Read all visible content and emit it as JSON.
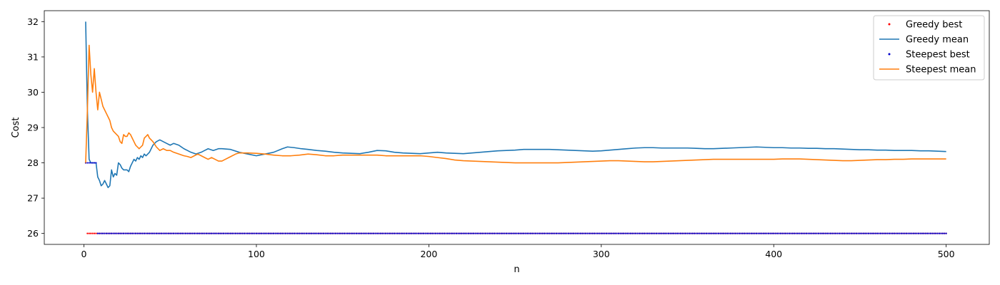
{
  "chart_data": {
    "type": "line",
    "title": "",
    "xlabel": "n",
    "ylabel": "Cost",
    "xlim": [
      -23,
      525
    ],
    "ylim": [
      25.69,
      32.31
    ],
    "xticks": [
      0,
      100,
      200,
      300,
      400,
      500
    ],
    "yticks": [
      26,
      27,
      28,
      29,
      30,
      31,
      32
    ],
    "grid": false,
    "legend_position": "top-right",
    "series": [
      {
        "name": "Greedy best",
        "style": "points",
        "color": "#ff0000",
        "x_range": [
          1,
          500
        ],
        "points": [
          [
            1,
            28
          ],
          [
            2,
            26
          ],
          [
            3,
            26
          ],
          [
            4,
            26
          ],
          [
            5,
            26
          ],
          [
            6,
            26
          ],
          [
            7,
            26
          ],
          [
            8,
            26
          ]
        ],
        "constant_tail": {
          "from": 8,
          "to": 500,
          "step": 1,
          "y": 26
        }
      },
      {
        "name": "Greedy mean",
        "style": "line",
        "color": "#1f77b4",
        "points": [
          [
            1,
            32
          ],
          [
            2,
            29.5
          ],
          [
            3,
            28.1
          ],
          [
            4,
            28.0
          ],
          [
            5,
            28.0
          ],
          [
            6,
            28.0
          ],
          [
            7,
            28.0
          ],
          [
            8,
            27.6
          ],
          [
            9,
            27.5
          ],
          [
            10,
            27.35
          ],
          [
            11,
            27.4
          ],
          [
            12,
            27.5
          ],
          [
            13,
            27.4
          ],
          [
            14,
            27.3
          ],
          [
            15,
            27.35
          ],
          [
            16,
            27.8
          ],
          [
            17,
            27.6
          ],
          [
            18,
            27.7
          ],
          [
            19,
            27.65
          ],
          [
            20,
            28.0
          ],
          [
            21,
            27.95
          ],
          [
            22,
            27.85
          ],
          [
            23,
            27.8
          ],
          [
            25,
            27.8
          ],
          [
            26,
            27.75
          ],
          [
            27,
            27.9
          ],
          [
            28,
            28.0
          ],
          [
            29,
            28.1
          ],
          [
            30,
            28.05
          ],
          [
            31,
            28.15
          ],
          [
            32,
            28.1
          ],
          [
            33,
            28.2
          ],
          [
            34,
            28.15
          ],
          [
            35,
            28.25
          ],
          [
            36,
            28.2
          ],
          [
            38,
            28.3
          ],
          [
            40,
            28.5
          ],
          [
            42,
            28.6
          ],
          [
            44,
            28.65
          ],
          [
            46,
            28.6
          ],
          [
            48,
            28.55
          ],
          [
            50,
            28.5
          ],
          [
            52,
            28.55
          ],
          [
            55,
            28.5
          ],
          [
            58,
            28.4
          ],
          [
            60,
            28.35
          ],
          [
            62,
            28.3
          ],
          [
            65,
            28.25
          ],
          [
            68,
            28.3
          ],
          [
            70,
            28.35
          ],
          [
            72,
            28.4
          ],
          [
            75,
            28.35
          ],
          [
            78,
            28.4
          ],
          [
            80,
            28.4
          ],
          [
            85,
            28.38
          ],
          [
            90,
            28.3
          ],
          [
            95,
            28.25
          ],
          [
            100,
            28.2
          ],
          [
            105,
            28.25
          ],
          [
            110,
            28.3
          ],
          [
            115,
            28.4
          ],
          [
            118,
            28.45
          ],
          [
            122,
            28.43
          ],
          [
            126,
            28.4
          ],
          [
            130,
            28.38
          ],
          [
            135,
            28.35
          ],
          [
            140,
            28.33
          ],
          [
            145,
            28.3
          ],
          [
            150,
            28.28
          ],
          [
            155,
            28.27
          ],
          [
            160,
            28.26
          ],
          [
            165,
            28.3
          ],
          [
            170,
            28.35
          ],
          [
            175,
            28.34
          ],
          [
            180,
            28.3
          ],
          [
            185,
            28.28
          ],
          [
            190,
            28.27
          ],
          [
            195,
            28.26
          ],
          [
            200,
            28.28
          ],
          [
            205,
            28.3
          ],
          [
            210,
            28.28
          ],
          [
            215,
            28.27
          ],
          [
            220,
            28.26
          ],
          [
            225,
            28.28
          ],
          [
            230,
            28.3
          ],
          [
            235,
            28.32
          ],
          [
            240,
            28.34
          ],
          [
            245,
            28.35
          ],
          [
            250,
            28.36
          ],
          [
            255,
            28.38
          ],
          [
            260,
            28.38
          ],
          [
            265,
            28.38
          ],
          [
            270,
            28.38
          ],
          [
            275,
            28.37
          ],
          [
            280,
            28.36
          ],
          [
            285,
            28.35
          ],
          [
            290,
            28.34
          ],
          [
            295,
            28.33
          ],
          [
            300,
            28.34
          ],
          [
            305,
            28.36
          ],
          [
            310,
            28.38
          ],
          [
            315,
            28.4
          ],
          [
            320,
            28.42
          ],
          [
            325,
            28.43
          ],
          [
            330,
            28.43
          ],
          [
            335,
            28.42
          ],
          [
            340,
            28.42
          ],
          [
            345,
            28.42
          ],
          [
            350,
            28.42
          ],
          [
            355,
            28.41
          ],
          [
            360,
            28.4
          ],
          [
            365,
            28.4
          ],
          [
            370,
            28.41
          ],
          [
            375,
            28.42
          ],
          [
            380,
            28.43
          ],
          [
            385,
            28.44
          ],
          [
            390,
            28.45
          ],
          [
            395,
            28.44
          ],
          [
            400,
            28.43
          ],
          [
            405,
            28.43
          ],
          [
            410,
            28.42
          ],
          [
            415,
            28.42
          ],
          [
            420,
            28.41
          ],
          [
            425,
            28.41
          ],
          [
            430,
            28.4
          ],
          [
            435,
            28.4
          ],
          [
            440,
            28.39
          ],
          [
            445,
            28.38
          ],
          [
            450,
            28.37
          ],
          [
            455,
            28.37
          ],
          [
            460,
            28.36
          ],
          [
            465,
            28.36
          ],
          [
            470,
            28.35
          ],
          [
            475,
            28.35
          ],
          [
            480,
            28.35
          ],
          [
            485,
            28.34
          ],
          [
            490,
            28.34
          ],
          [
            495,
            28.33
          ],
          [
            500,
            28.32
          ]
        ]
      },
      {
        "name": "Steepest best",
        "style": "points",
        "color": "#0000cc",
        "x_range": [
          1,
          500
        ],
        "points": [
          [
            1,
            28
          ],
          [
            2,
            28
          ],
          [
            3,
            28
          ],
          [
            4,
            28
          ],
          [
            5,
            28
          ],
          [
            6,
            28
          ],
          [
            7,
            28
          ],
          [
            8,
            26
          ]
        ],
        "constant_tail": {
          "from": 8,
          "to": 500,
          "step": 1,
          "y": 26
        }
      },
      {
        "name": "Steepest mean",
        "style": "line",
        "color": "#ff7f0e",
        "points": [
          [
            1,
            28
          ],
          [
            2,
            29.5
          ],
          [
            3,
            31.33
          ],
          [
            4,
            30.5
          ],
          [
            5,
            30.0
          ],
          [
            6,
            30.67
          ],
          [
            7,
            30.0
          ],
          [
            8,
            29.5
          ],
          [
            9,
            30.0
          ],
          [
            10,
            29.8
          ],
          [
            11,
            29.6
          ],
          [
            12,
            29.5
          ],
          [
            13,
            29.4
          ],
          [
            14,
            29.3
          ],
          [
            15,
            29.2
          ],
          [
            16,
            29.0
          ],
          [
            17,
            28.9
          ],
          [
            18,
            28.85
          ],
          [
            19,
            28.8
          ],
          [
            20,
            28.75
          ],
          [
            21,
            28.6
          ],
          [
            22,
            28.55
          ],
          [
            23,
            28.8
          ],
          [
            24,
            28.75
          ],
          [
            25,
            28.75
          ],
          [
            26,
            28.85
          ],
          [
            27,
            28.8
          ],
          [
            28,
            28.7
          ],
          [
            29,
            28.6
          ],
          [
            30,
            28.5
          ],
          [
            31,
            28.45
          ],
          [
            32,
            28.4
          ],
          [
            33,
            28.45
          ],
          [
            34,
            28.5
          ],
          [
            35,
            28.7
          ],
          [
            36,
            28.75
          ],
          [
            37,
            28.8
          ],
          [
            38,
            28.7
          ],
          [
            40,
            28.6
          ],
          [
            42,
            28.45
          ],
          [
            44,
            28.35
          ],
          [
            46,
            28.4
          ],
          [
            48,
            28.35
          ],
          [
            50,
            28.35
          ],
          [
            52,
            28.3
          ],
          [
            55,
            28.25
          ],
          [
            58,
            28.2
          ],
          [
            60,
            28.18
          ],
          [
            62,
            28.15
          ],
          [
            64,
            28.2
          ],
          [
            66,
            28.25
          ],
          [
            68,
            28.2
          ],
          [
            70,
            28.15
          ],
          [
            72,
            28.1
          ],
          [
            74,
            28.15
          ],
          [
            76,
            28.1
          ],
          [
            78,
            28.05
          ],
          [
            80,
            28.05
          ],
          [
            82,
            28.1
          ],
          [
            84,
            28.15
          ],
          [
            86,
            28.2
          ],
          [
            88,
            28.25
          ],
          [
            90,
            28.28
          ],
          [
            95,
            28.28
          ],
          [
            100,
            28.27
          ],
          [
            105,
            28.25
          ],
          [
            110,
            28.22
          ],
          [
            115,
            28.2
          ],
          [
            120,
            28.2
          ],
          [
            125,
            28.22
          ],
          [
            130,
            28.25
          ],
          [
            135,
            28.23
          ],
          [
            140,
            28.2
          ],
          [
            145,
            28.2
          ],
          [
            150,
            28.22
          ],
          [
            155,
            28.22
          ],
          [
            160,
            28.22
          ],
          [
            165,
            28.22
          ],
          [
            170,
            28.22
          ],
          [
            175,
            28.2
          ],
          [
            180,
            28.2
          ],
          [
            185,
            28.2
          ],
          [
            190,
            28.2
          ],
          [
            195,
            28.2
          ],
          [
            200,
            28.18
          ],
          [
            205,
            28.15
          ],
          [
            210,
            28.12
          ],
          [
            215,
            28.08
          ],
          [
            220,
            28.06
          ],
          [
            225,
            28.05
          ],
          [
            230,
            28.04
          ],
          [
            235,
            28.03
          ],
          [
            240,
            28.02
          ],
          [
            245,
            28.01
          ],
          [
            250,
            28.0
          ],
          [
            255,
            28.0
          ],
          [
            260,
            28.0
          ],
          [
            265,
            28.0
          ],
          [
            270,
            28.0
          ],
          [
            275,
            28.0
          ],
          [
            280,
            28.01
          ],
          [
            285,
            28.02
          ],
          [
            290,
            28.03
          ],
          [
            295,
            28.04
          ],
          [
            300,
            28.05
          ],
          [
            305,
            28.06
          ],
          [
            310,
            28.06
          ],
          [
            315,
            28.05
          ],
          [
            320,
            28.04
          ],
          [
            325,
            28.03
          ],
          [
            330,
            28.03
          ],
          [
            335,
            28.04
          ],
          [
            340,
            28.05
          ],
          [
            345,
            28.06
          ],
          [
            350,
            28.07
          ],
          [
            355,
            28.08
          ],
          [
            360,
            28.09
          ],
          [
            365,
            28.1
          ],
          [
            370,
            28.1
          ],
          [
            375,
            28.1
          ],
          [
            380,
            28.1
          ],
          [
            385,
            28.1
          ],
          [
            390,
            28.1
          ],
          [
            395,
            28.1
          ],
          [
            400,
            28.1
          ],
          [
            405,
            28.11
          ],
          [
            410,
            28.11
          ],
          [
            415,
            28.11
          ],
          [
            420,
            28.1
          ],
          [
            425,
            28.09
          ],
          [
            430,
            28.08
          ],
          [
            435,
            28.07
          ],
          [
            440,
            28.06
          ],
          [
            445,
            28.06
          ],
          [
            450,
            28.07
          ],
          [
            455,
            28.08
          ],
          [
            460,
            28.09
          ],
          [
            465,
            28.09
          ],
          [
            470,
            28.1
          ],
          [
            475,
            28.1
          ],
          [
            480,
            28.11
          ],
          [
            485,
            28.11
          ],
          [
            490,
            28.11
          ],
          [
            495,
            28.11
          ],
          [
            500,
            28.11
          ]
        ]
      }
    ]
  }
}
